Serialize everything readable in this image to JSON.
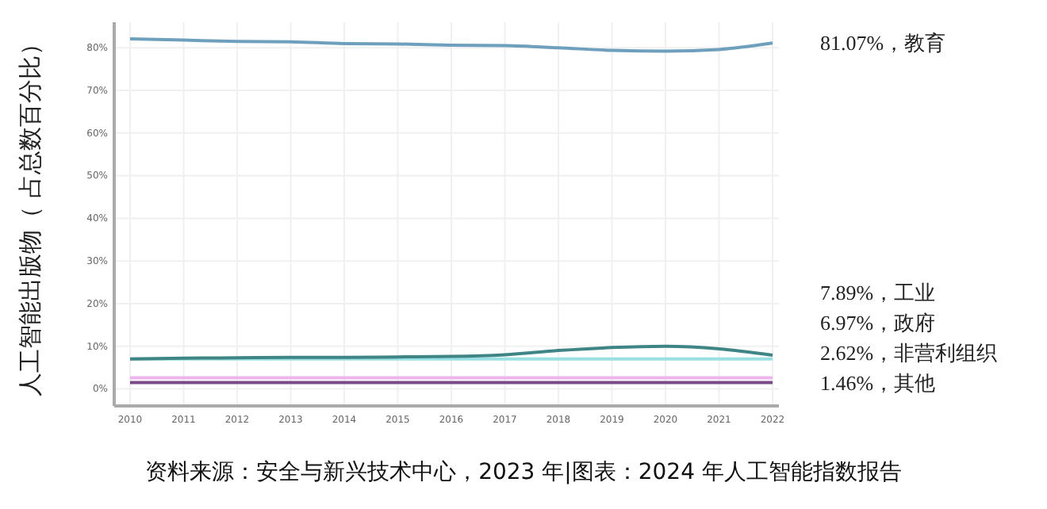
{
  "chart_data": {
    "type": "line",
    "ylabel": "人工智能出版物（ 占总数百分比）",
    "x": [
      2010,
      2011,
      2012,
      2013,
      2014,
      2015,
      2016,
      2017,
      2018,
      2019,
      2020,
      2021,
      2022
    ],
    "xlim": [
      2010,
      2022
    ],
    "xticks": [
      2010,
      2011,
      2012,
      2013,
      2014,
      2015,
      2016,
      2017,
      2018,
      2019,
      2020,
      2021,
      2022
    ],
    "ylim": [
      -4,
      86
    ],
    "yticks": [
      {
        "value": 0,
        "label": "0%"
      },
      {
        "value": 10,
        "label": "10%"
      },
      {
        "value": 20,
        "label": "20%"
      },
      {
        "value": 30,
        "label": "30%"
      },
      {
        "value": 40,
        "label": "40%"
      },
      {
        "value": 50,
        "label": "50%"
      },
      {
        "value": 60,
        "label": "60%"
      },
      {
        "value": 70,
        "label": "70%"
      },
      {
        "value": 80,
        "label": "80%"
      }
    ],
    "grid": true,
    "marker": "none",
    "line_style": "solid",
    "series": [
      {
        "color": "#6e9fbd",
        "values": [
          82.1,
          81.8,
          81.5,
          81.4,
          81.0,
          80.9,
          80.6,
          80.5,
          80.0,
          79.4,
          79.2,
          79.6,
          81.1
        ]
      },
      {
        "color": "#9adfe2",
        "values": [
          7.0,
          7.0,
          7.0,
          7.0,
          7.0,
          7.0,
          7.0,
          7.0,
          7.0,
          7.0,
          7.0,
          7.0,
          7.0
        ]
      },
      {
        "color": "#3f8585",
        "values": [
          7.0,
          7.2,
          7.3,
          7.4,
          7.4,
          7.5,
          7.6,
          8.0,
          9.0,
          9.7,
          10.0,
          9.4,
          7.9
        ]
      },
      {
        "color": "#eeb4ee",
        "values": [
          2.6,
          2.6,
          2.6,
          2.6,
          2.6,
          2.6,
          2.6,
          2.6,
          2.6,
          2.6,
          2.6,
          2.6,
          2.6
        ]
      },
      {
        "color": "#7a4a88",
        "values": [
          1.5,
          1.5,
          1.5,
          1.5,
          1.5,
          1.5,
          1.5,
          1.5,
          1.5,
          1.5,
          1.5,
          1.5,
          1.5
        ]
      }
    ],
    "annotations": [
      "81.07%，教育",
      "7.89%，工业",
      "6.97%，政府",
      "2.62%，非营利组织",
      "1.46%，其他",
      "资料来源：安全与新兴技术中心，2023 年|图表：2024 年人工智能指数报告"
    ]
  }
}
